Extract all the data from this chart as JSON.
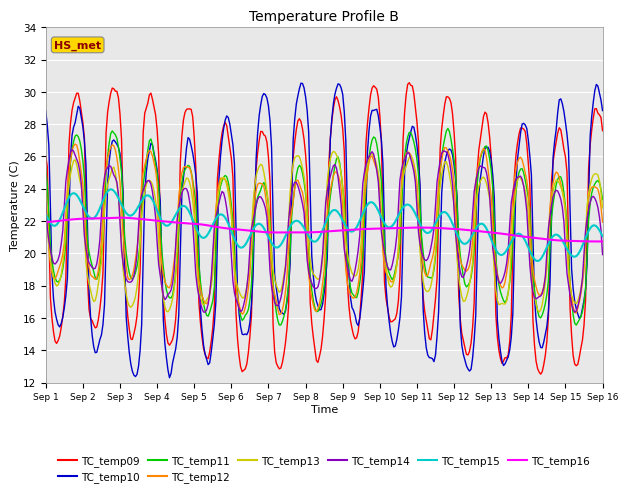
{
  "title": "Temperature Profile B",
  "xlabel": "Time",
  "ylabel": "Temperature (C)",
  "ylim": [
    12,
    34
  ],
  "xlim": [
    0,
    360
  ],
  "annotation_text": "HS_met",
  "annotation_color": "#8B0000",
  "annotation_bg": "#FFD700",
  "bg_color": "#E8E8E8",
  "grid_color": "white",
  "xtick_labels": [
    "Sep 1",
    "Sep 2",
    "Sep 3",
    "Sep 4",
    "Sep 5",
    "Sep 6",
    "Sep 7",
    "Sep 8",
    "Sep 9",
    "Sep 10",
    "Sep 11",
    "Sep 12",
    "Sep 13",
    "Sep 14",
    "Sep 15",
    "Sep 16"
  ],
  "xtick_positions": [
    0,
    24,
    48,
    72,
    96,
    120,
    144,
    168,
    192,
    216,
    240,
    264,
    288,
    312,
    336,
    360
  ],
  "series_order": [
    "TC_temp09",
    "TC_temp10",
    "TC_temp11",
    "TC_temp12",
    "TC_temp13",
    "TC_temp14",
    "TC_temp15",
    "TC_temp16"
  ],
  "series": {
    "TC_temp09": {
      "color": "#FF0000",
      "lw": 1.0
    },
    "TC_temp10": {
      "color": "#0000CC",
      "lw": 1.0
    },
    "TC_temp11": {
      "color": "#00CC00",
      "lw": 1.0
    },
    "TC_temp12": {
      "color": "#FF8800",
      "lw": 1.0
    },
    "TC_temp13": {
      "color": "#CCCC00",
      "lw": 1.0
    },
    "TC_temp14": {
      "color": "#8800BB",
      "lw": 1.0
    },
    "TC_temp15": {
      "color": "#00CCCC",
      "lw": 1.5
    },
    "TC_temp16": {
      "color": "#FF00FF",
      "lw": 1.5
    }
  },
  "legend_ncol": 6,
  "legend_fontsize": 7.5
}
